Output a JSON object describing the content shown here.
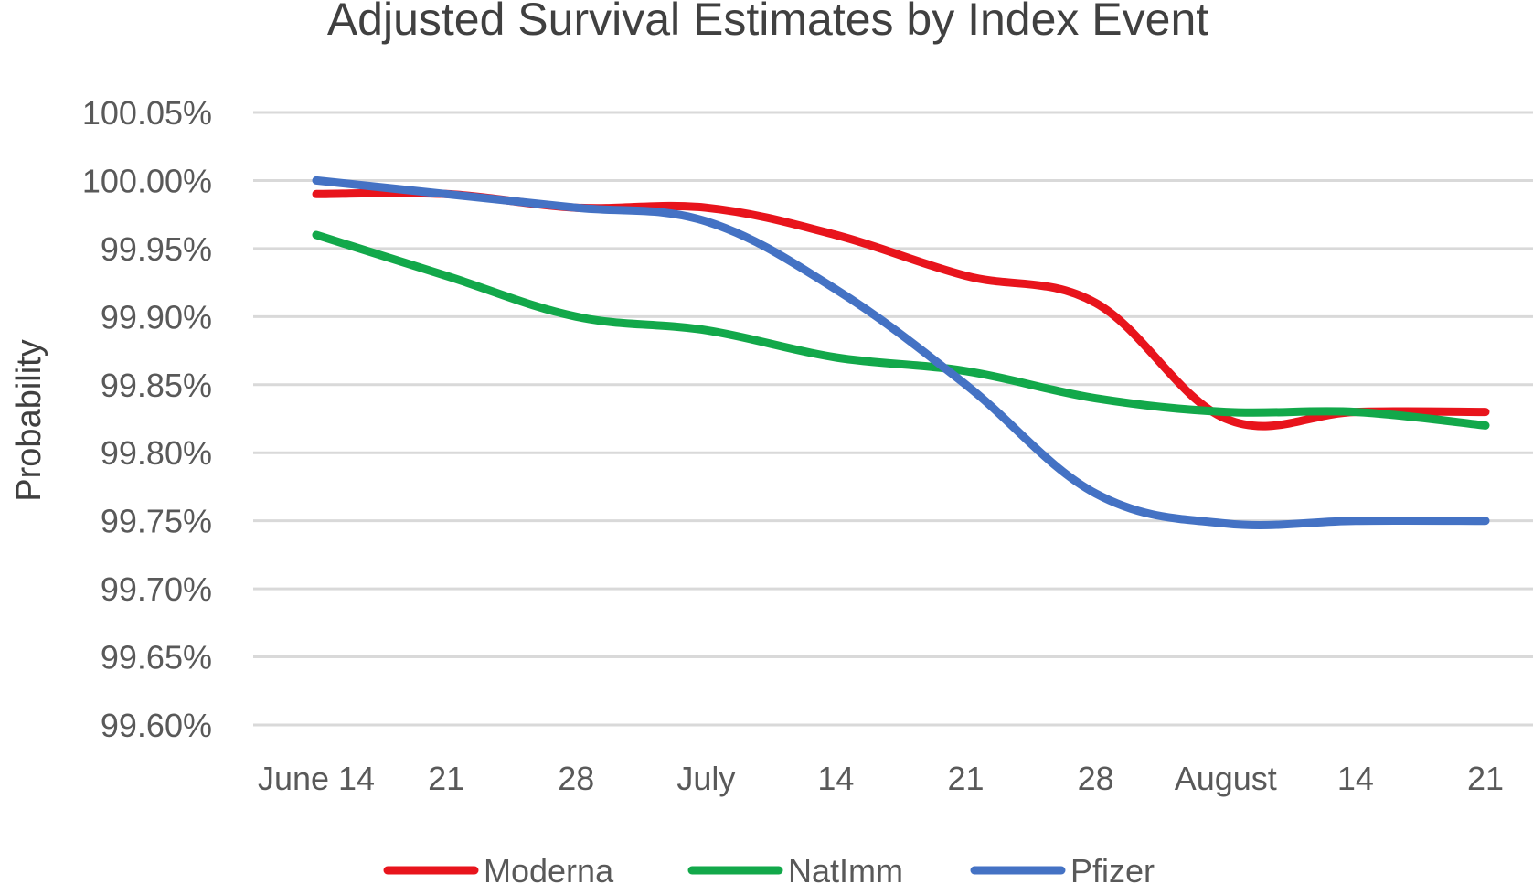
{
  "chart_data": {
    "type": "line",
    "title": "Adjusted Survival Estimates by Index Event",
    "xlabel": "",
    "ylabel": "Probability",
    "ylim": [
      99.6,
      100.05
    ],
    "ytick_values": [
      99.6,
      99.65,
      99.7,
      99.75,
      99.8,
      99.85,
      99.9,
      99.95,
      100.0,
      100.05
    ],
    "ytick_labels": [
      "99.60%",
      "99.65%",
      "99.70%",
      "99.75%",
      "99.80%",
      "99.85%",
      "99.90%",
      "99.95%",
      "100.00%",
      "100.05%"
    ],
    "x": [
      "June 14",
      "21",
      "28",
      "July",
      "14",
      "21",
      "28",
      "August",
      "14",
      "21"
    ],
    "grid": true,
    "smooth": true,
    "legend_position": "bottom",
    "series": [
      {
        "name": "Moderna",
        "color": "#e8141c",
        "values": [
          99.99,
          99.99,
          99.98,
          99.98,
          99.96,
          99.93,
          99.91,
          99.825,
          99.83,
          99.83
        ]
      },
      {
        "name": "NatImm",
        "color": "#12a84a",
        "values": [
          99.96,
          99.93,
          99.9,
          99.89,
          99.87,
          99.86,
          99.84,
          99.83,
          99.83,
          99.82
        ]
      },
      {
        "name": "Pfizer",
        "color": "#4472c4",
        "values": [
          100.0,
          99.99,
          99.98,
          99.97,
          99.92,
          99.85,
          99.77,
          99.748,
          99.75,
          99.75
        ]
      }
    ]
  }
}
